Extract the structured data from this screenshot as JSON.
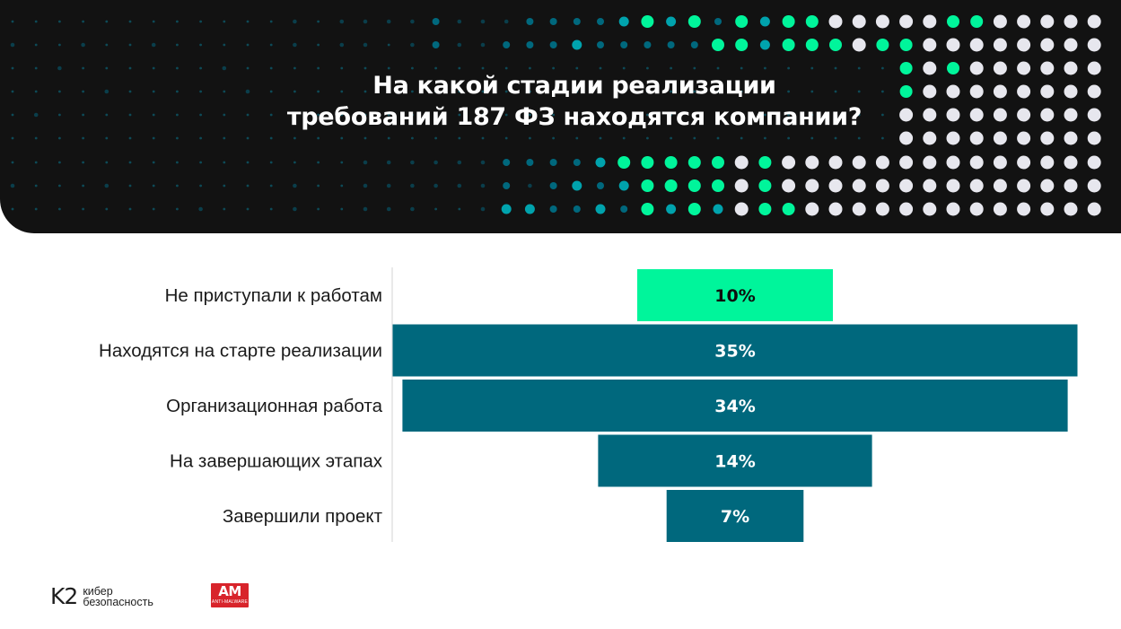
{
  "title_lines": [
    "На какой стадии реализации",
    "требований 187 ФЗ находятся компании?"
  ],
  "colors": {
    "banner_bg": "#121212",
    "bar_highlight": "#00f59b",
    "bar_default": "#00687d",
    "label_text": "#1a1a1a"
  },
  "chart_data": {
    "type": "bar",
    "orientation": "horizontal-centered",
    "categories": [
      "Не приступали к работам",
      "Находятся на старте реализации",
      "Организационная работа",
      "На завершающих этапах",
      "Завершили проект"
    ],
    "values": [
      10,
      35,
      34,
      14,
      7
    ],
    "value_labels": [
      "10%",
      "35%",
      "34%",
      "14%",
      "7%"
    ],
    "highlight_index": 0,
    "unit": "%"
  },
  "logos": {
    "k2_mark": "K2",
    "k2_line1": "кибер",
    "k2_line2": "безопасность",
    "am_mark": "AM",
    "am_sub": "ANTI-MALWARE"
  }
}
